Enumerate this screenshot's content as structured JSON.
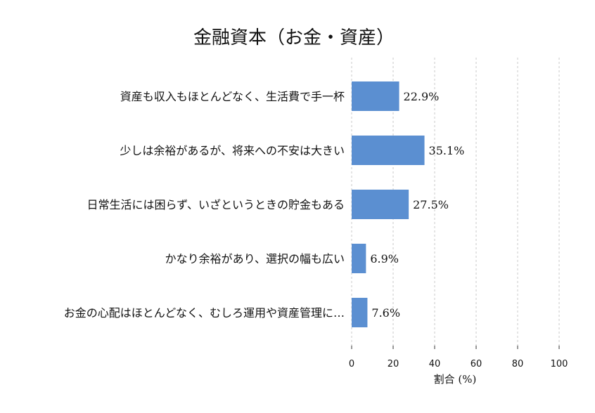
{
  "chart_data": {
    "type": "bar",
    "orientation": "horizontal",
    "title": "金融資本（お金・資産）",
    "xlabel": "割合 (%)",
    "ylabel": "",
    "categories": [
      "資産も収入もほとんどなく、生活費で手一杯",
      "少しは余裕があるが、将来への不安は大きい",
      "日常生活には困らず、いざというときの貯金もある",
      "かなり余裕があり、選択の幅も広い",
      "お金の心配はほとんどなく、むしろ運用や資産管理に…"
    ],
    "values": [
      22.9,
      35.1,
      27.5,
      6.9,
      7.6
    ],
    "value_labels": [
      "22.9%",
      "35.1%",
      "27.5%",
      "6.9%",
      "7.6%"
    ],
    "xlim": [
      0,
      100
    ],
    "xticks": [
      0,
      20,
      40,
      60,
      80,
      100
    ],
    "grid": true,
    "bar_color": "#5b8fd1"
  }
}
